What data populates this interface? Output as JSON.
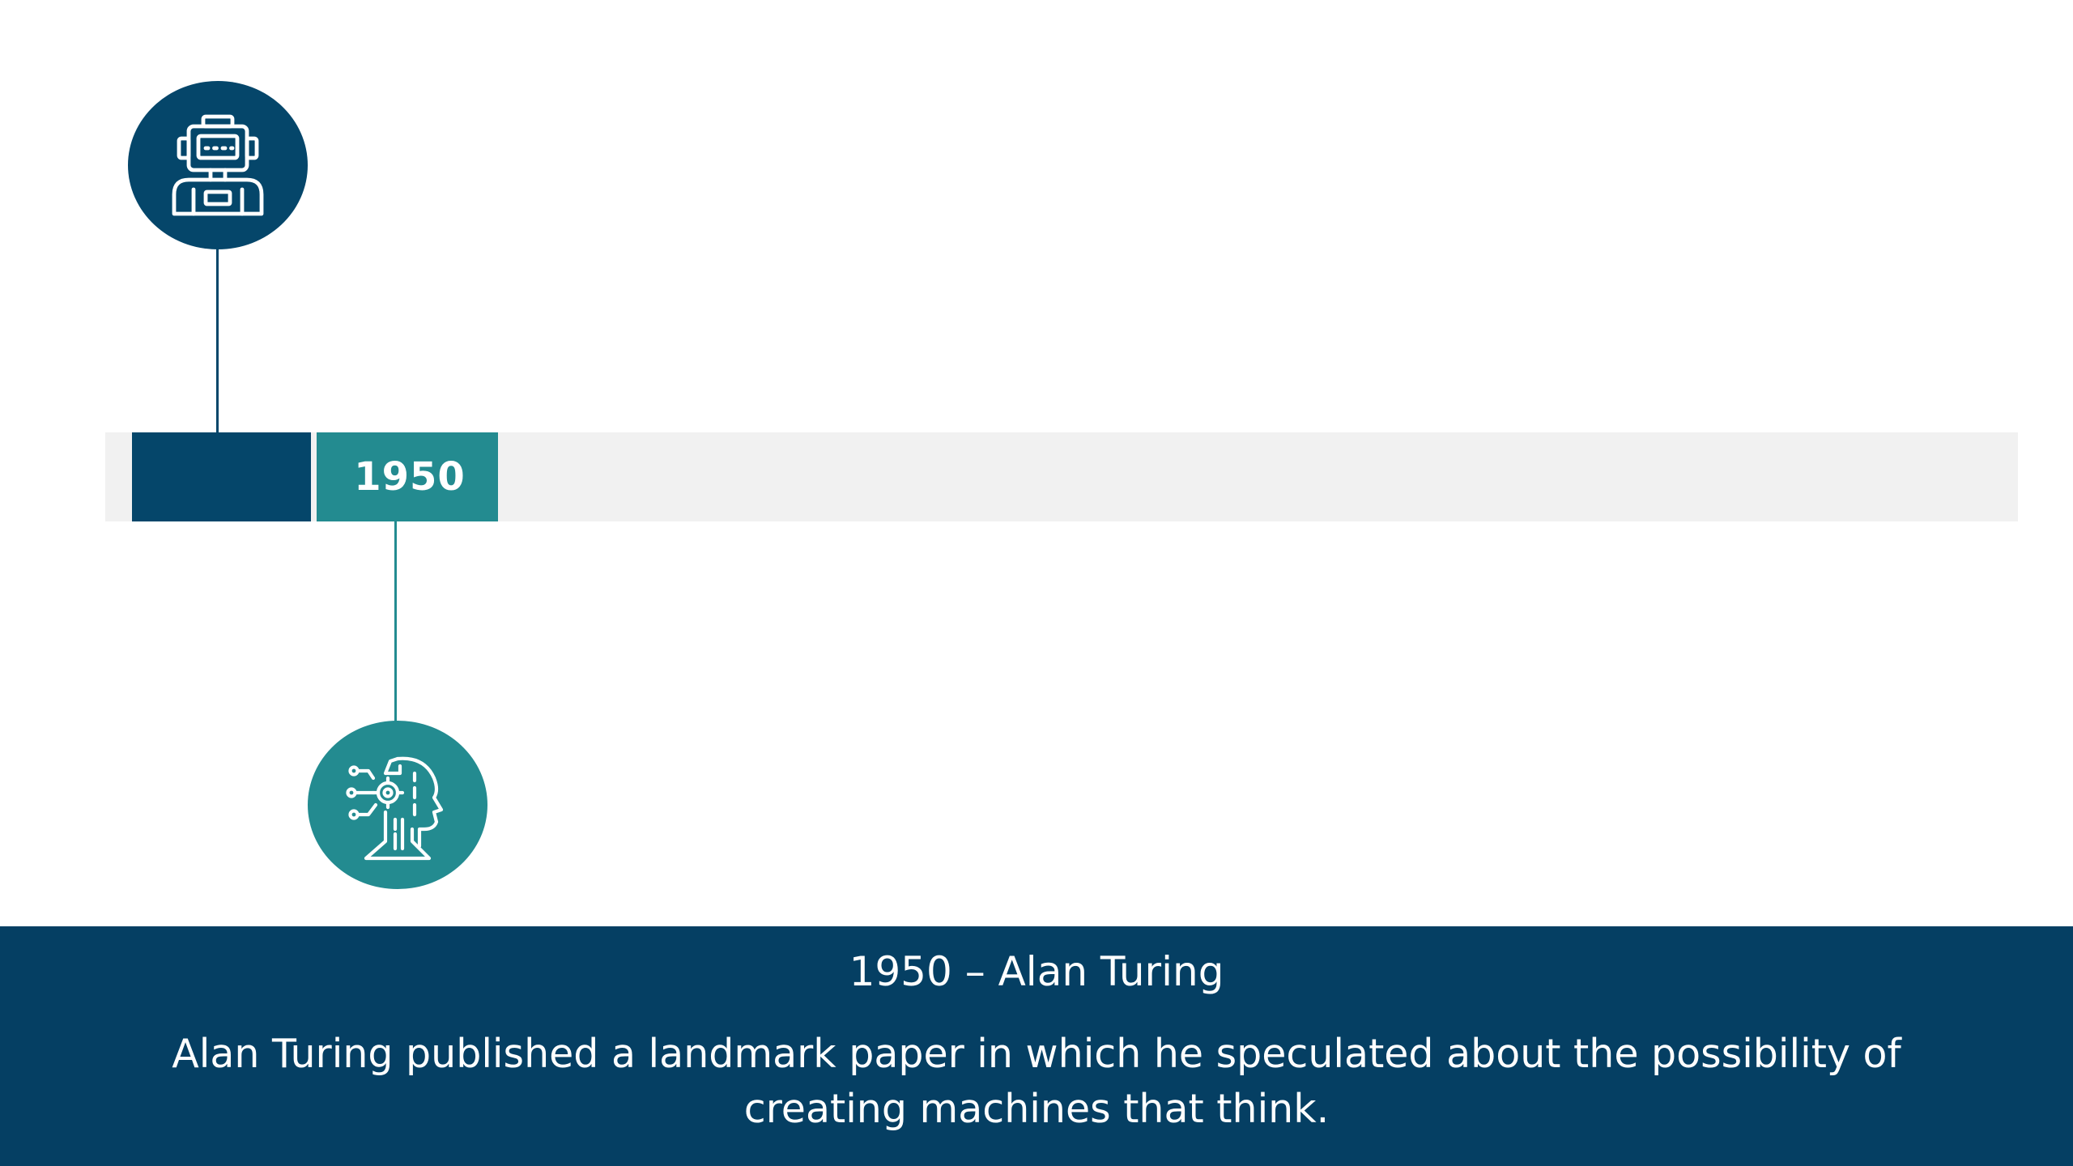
{
  "timeline": {
    "year_label": "1950",
    "colors": {
      "dark_segment": "#05466a",
      "teal_segment": "#238b90",
      "track": "#f1f1f1"
    },
    "icons": [
      "robot-icon",
      "ai-head-icon"
    ]
  },
  "caption": {
    "title": "1950 – Alan Turing",
    "body": "Alan Turing published a landmark paper in which he speculated about the possibility of creating machines that think.",
    "background": "#053f63"
  }
}
